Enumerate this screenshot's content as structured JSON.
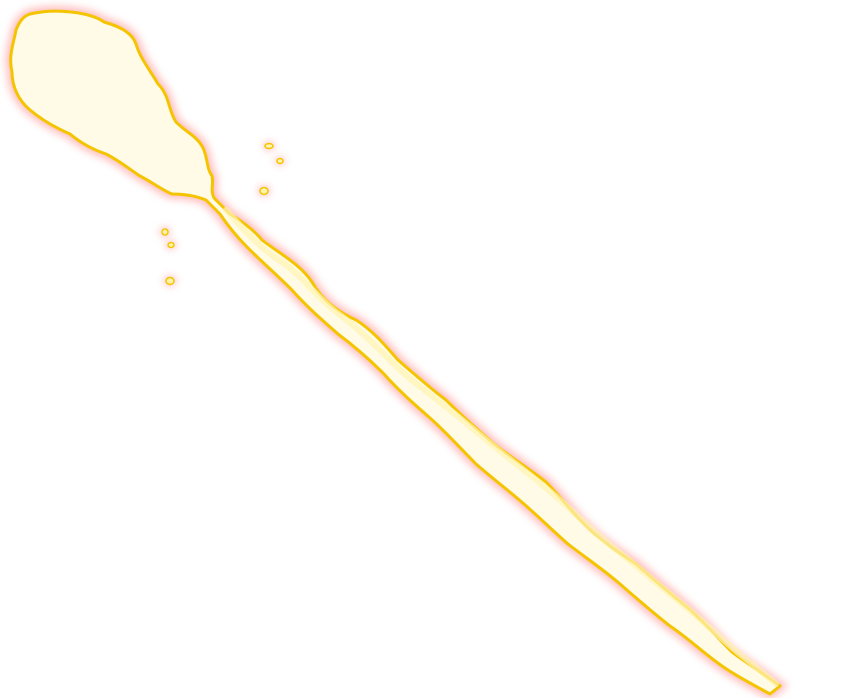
{
  "artwork": {
    "subject": "beam-effect",
    "colors": {
      "core": "#fffbe6",
      "outline": "#f5c400",
      "glow": "#ff8a8a"
    }
  }
}
